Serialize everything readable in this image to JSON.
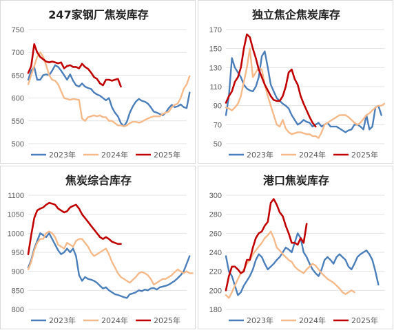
{
  "legend": [
    "2023年",
    "2024年",
    "2025年"
  ],
  "colors": {
    "2023年": "#4a7ebb",
    "2024年": "#f6b98a",
    "2025年": "#c00000"
  },
  "chart_data": [
    {
      "type": "line",
      "title": "247家钢厂焦炭库存",
      "ylim": [
        500,
        750
      ],
      "yticks": [
        500,
        550,
        600,
        650,
        700,
        750
      ],
      "grid": true,
      "legend_position": "bottom",
      "series": [
        {
          "name": "2023年",
          "values": [
            640,
            660,
            668,
            640,
            640,
            650,
            652,
            650,
            660,
            672,
            668,
            660,
            650,
            640,
            652,
            638,
            628,
            625,
            632,
            625,
            622,
            620,
            612,
            608,
            605,
            600,
            595,
            600,
            580,
            568,
            560,
            545,
            538,
            548,
            568,
            582,
            592,
            598,
            594,
            592,
            588,
            580,
            570,
            568,
            565,
            562,
            568,
            578,
            585,
            580,
            582,
            586,
            580,
            578,
            612
          ]
        },
        {
          "name": "2024年",
          "values": [
            630,
            650,
            670,
            690,
            700,
            690,
            672,
            650,
            640,
            638,
            630,
            615,
            600,
            598,
            596,
            598,
            597,
            596,
            555,
            550,
            558,
            560,
            562,
            560,
            562,
            558,
            558,
            550,
            550,
            545,
            540,
            540,
            538,
            540,
            545,
            548,
            548,
            546,
            548,
            552,
            555,
            558,
            560,
            560,
            560,
            565,
            568,
            570,
            580,
            585,
            588,
            600,
            620,
            630,
            648
          ]
        },
        {
          "name": "2025年",
          "values": [
            655,
            670,
            718,
            700,
            690,
            685,
            680,
            678,
            680,
            678,
            676,
            678,
            665,
            670,
            672,
            668,
            668,
            665,
            675,
            668,
            664,
            656,
            646,
            642,
            632,
            628,
            640,
            640,
            638,
            640,
            642,
            625
          ]
        }
      ]
    },
    {
      "type": "line",
      "title": "独立焦企焦炭库存",
      "ylim": [
        50,
        170
      ],
      "yticks": [
        50,
        70,
        90,
        110,
        130,
        150,
        170
      ],
      "grid": true,
      "legend_position": "bottom",
      "series": [
        {
          "name": "2023年",
          "values": [
            80,
            100,
            140,
            130,
            125,
            120,
            112,
            108,
            106,
            105,
            110,
            120,
            142,
            147,
            130,
            112,
            105,
            98,
            95,
            92,
            90,
            87,
            80,
            75,
            70,
            72,
            75,
            73,
            72,
            68,
            70,
            72,
            68,
            70,
            72,
            68,
            68,
            68,
            66,
            64,
            62,
            64,
            65,
            70,
            70,
            68,
            65,
            80,
            65,
            68,
            88,
            90,
            80
          ]
        },
        {
          "name": "2024年",
          "values": [
            88,
            87,
            85,
            88,
            92,
            100,
            115,
            130,
            150,
            120,
            125,
            130,
            128,
            112,
            100,
            90,
            80,
            70,
            68,
            75,
            66,
            62,
            60,
            61,
            62,
            62,
            61,
            60,
            60,
            58,
            58,
            56,
            62,
            70,
            72,
            74,
            76,
            78,
            80,
            80,
            80,
            78,
            75,
            72,
            70,
            72,
            76,
            80,
            82,
            85,
            88,
            90,
            90,
            92
          ]
        },
        {
          "name": "2025年",
          "values": [
            93,
            100,
            105,
            115,
            120,
            130,
            150,
            165,
            162,
            150,
            140,
            128,
            120,
            112,
            106,
            100,
            96,
            95,
            95,
            100,
            110,
            125,
            128,
            118,
            112,
            100,
            92,
            85,
            78,
            72,
            68
          ]
        }
      ]
    },
    {
      "type": "line",
      "title": "焦炭综合库存",
      "ylim": [
        800,
        1100
      ],
      "yticks": [
        800,
        850,
        900,
        950,
        1000,
        1050,
        1100
      ],
      "grid": true,
      "legend_position": "bottom",
      "series": [
        {
          "name": "2023年",
          "values": [
            910,
            930,
            960,
            980,
            1000,
            995,
            990,
            1000,
            985,
            970,
            955,
            945,
            950,
            960,
            950,
            960,
            940,
            890,
            875,
            885,
            880,
            878,
            875,
            870,
            862,
            855,
            858,
            850,
            845,
            840,
            838,
            835,
            832,
            830,
            840,
            842,
            845,
            850,
            848,
            852,
            850,
            855,
            856,
            852,
            858,
            860,
            862,
            865,
            870,
            875,
            882,
            890,
            900,
            920,
            940
          ]
        },
        {
          "name": "2024年",
          "values": [
            905,
            925,
            955,
            975,
            985,
            985,
            1000,
            1005,
            1000,
            990,
            970,
            965,
            960,
            975,
            970,
            965,
            980,
            985,
            985,
            975,
            965,
            950,
            940,
            945,
            950,
            955,
            960,
            945,
            925,
            910,
            895,
            885,
            880,
            875,
            870,
            878,
            885,
            895,
            898,
            895,
            890,
            880,
            865,
            870,
            875,
            880,
            880,
            885,
            890,
            898,
            905,
            900,
            895,
            900,
            895,
            895
          ]
        },
        {
          "name": "2025年",
          "values": [
            945,
            995,
            1040,
            1060,
            1065,
            1068,
            1075,
            1080,
            1078,
            1075,
            1065,
            1060,
            1055,
            1058,
            1068,
            1072,
            1075,
            1065,
            1050,
            1040,
            1030,
            1020,
            1010,
            1000,
            990,
            985,
            990,
            985,
            978,
            975,
            972,
            972
          ]
        }
      ]
    },
    {
      "type": "line",
      "title": "港口焦炭库存",
      "ylim": [
        180,
        300
      ],
      "yticks": [
        180,
        200,
        220,
        240,
        260,
        280,
        300
      ],
      "grid": true,
      "legend_position": "bottom",
      "series": [
        {
          "name": "2023年",
          "values": [
            236,
            220,
            215,
            205,
            195,
            198,
            205,
            210,
            215,
            222,
            232,
            238,
            235,
            228,
            222,
            225,
            228,
            232,
            235,
            240,
            245,
            243,
            240,
            250,
            260,
            255,
            240,
            235,
            228,
            222,
            218,
            215,
            222,
            232,
            235,
            232,
            228,
            235,
            238,
            235,
            232,
            225,
            222,
            228,
            235,
            238,
            240,
            242,
            238,
            232,
            220,
            206
          ]
        },
        {
          "name": "2024年",
          "values": [
            195,
            192,
            198,
            205,
            212,
            218,
            222,
            228,
            232,
            238,
            242,
            246,
            250,
            255,
            258,
            262,
            255,
            245,
            242,
            238,
            235,
            232,
            230,
            225,
            222,
            220,
            218,
            222,
            225,
            228,
            226,
            222,
            218,
            215,
            212,
            210,
            208,
            205,
            202,
            198,
            196,
            198,
            200,
            198
          ]
        },
        {
          "name": "2025年",
          "values": [
            200,
            215,
            225,
            225,
            222,
            218,
            220,
            232,
            232,
            245,
            255,
            260,
            262,
            268,
            272,
            292,
            296,
            290,
            282,
            278,
            268,
            260,
            250,
            250,
            248,
            255,
            250,
            270
          ]
        }
      ]
    }
  ]
}
